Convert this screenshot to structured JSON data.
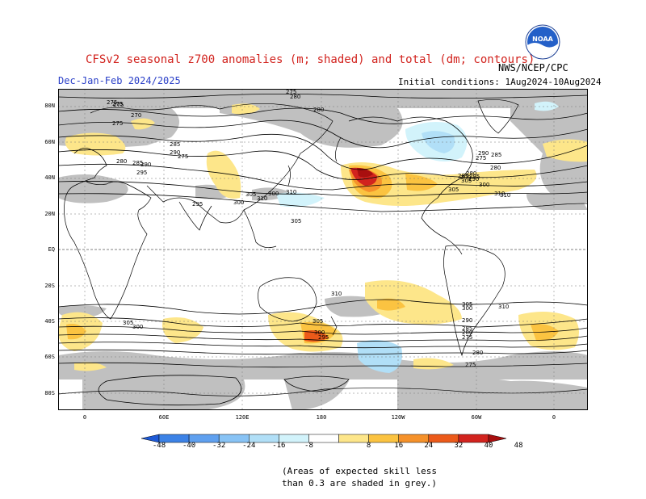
{
  "header": {
    "title": "CFSv2 seasonal z700 anomalies (m; shaded) and total (dm; contours)",
    "subtitle": "Dec-Jan-Feb 2024/2025",
    "initial_conditions": "Initial conditions:  1Aug2024-10Aug2024",
    "agency": "NWS/NCEP/CPC",
    "logo_text": "NOAA"
  },
  "map": {
    "lat_labels": [
      "80N",
      "60N",
      "40N",
      "20N",
      "EQ",
      "20S",
      "40S",
      "60S",
      "80S"
    ],
    "lon_labels": [
      "0",
      "60E",
      "120E",
      "180",
      "120W",
      "60W",
      "0"
    ],
    "contour_labels": [
      "275",
      "275",
      "280",
      "280",
      "285",
      "290",
      "295",
      "300",
      "305",
      "310",
      "310",
      "305",
      "300",
      "295",
      "290",
      "285",
      "280",
      "275",
      "275",
      "275",
      "270",
      "275",
      "290",
      "285",
      "280",
      "295",
      "300",
      "305",
      "310",
      "310",
      "305",
      "300",
      "290",
      "285",
      "280",
      "275",
      "310",
      "305",
      "300",
      "295",
      "280",
      "275",
      "305",
      "300",
      "290",
      "285",
      "280",
      "275",
      "310",
      "305",
      "300"
    ]
  },
  "colorbar": {
    "labels": [
      "-48",
      "-40",
      "-32",
      "-24",
      "-16",
      "-8",
      "8",
      "16",
      "24",
      "32",
      "40",
      "48"
    ],
    "colors": [
      "#1e5ad6",
      "#3c82e6",
      "#5fa0ef",
      "#88c3f5",
      "#b1dff7",
      "#d2f3fb",
      "#ffffff",
      "#fde68a",
      "#fbc341",
      "#f5912a",
      "#ec5a1a",
      "#d2231e",
      "#a80f0f"
    ]
  },
  "footer": {
    "note_line1": "(Areas of expected skill less",
    "note_line2": "than 0.3 are shaded in grey.)"
  }
}
